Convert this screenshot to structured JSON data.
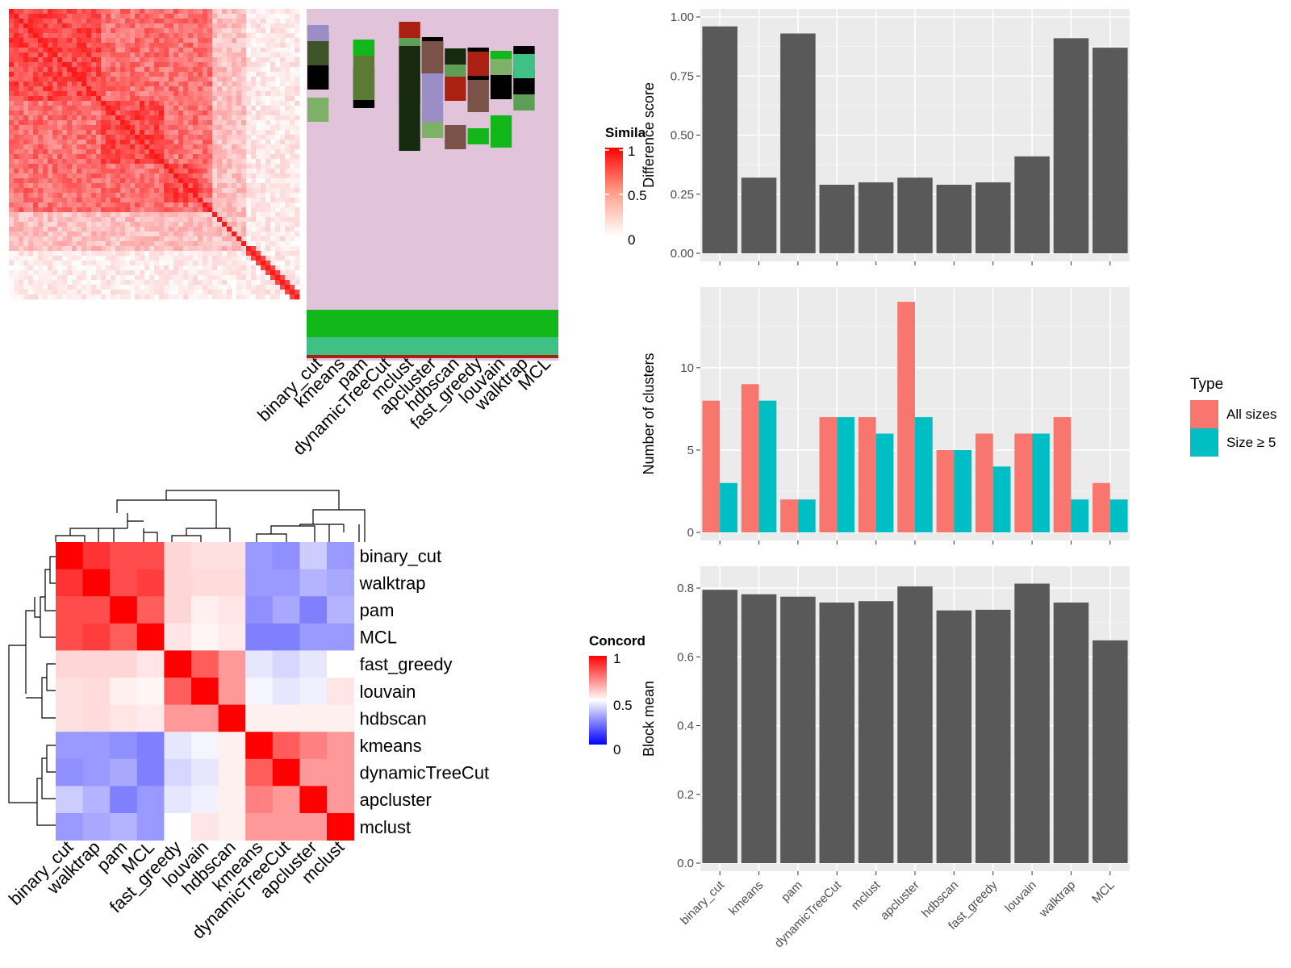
{
  "methods": [
    "binary_cut",
    "kmeans",
    "pam",
    "dynamicTreeCut",
    "mclust",
    "apcluster",
    "hdbscan",
    "fast_greedy",
    "louvain",
    "walktrap",
    "MCL"
  ],
  "similarity_legend": {
    "title": "Simila",
    "ticks": [
      "1",
      "0.5",
      "0"
    ]
  },
  "concordance_legend": {
    "title": "Concord",
    "ticks": [
      "1",
      "0.5",
      "0"
    ]
  },
  "colors": {
    "bar": "#595959",
    "all_sizes": "#F8766D",
    "size5": "#00BFC4",
    "panel_bg": "#EBEBEB",
    "grid": "#FFFFFF",
    "heat_high": "#FF0000",
    "heat_low_blue": "#0000FF",
    "cluster_bg": "#E2C4DA"
  },
  "chart_data": [
    {
      "type": "heatmap",
      "name": "similarity-matrix-with-cluster-assignments",
      "title": "",
      "columns": [
        "binary_cut",
        "kmeans",
        "pam",
        "dynamicTreeCut",
        "mclust",
        "apcluster",
        "hdbscan",
        "fast_greedy",
        "louvain",
        "walktrap",
        "MCL"
      ],
      "legend_title": "Simila",
      "legend_ticks": [
        1,
        0.5,
        0
      ],
      "range": [
        0,
        1
      ]
    },
    {
      "type": "heatmap",
      "name": "concordance-heatmap",
      "title": "",
      "rows": [
        "binary_cut",
        "walktrap",
        "pam",
        "MCL",
        "fast_greedy",
        "louvain",
        "hdbscan",
        "kmeans",
        "dynamicTreeCut",
        "apcluster",
        "mclust"
      ],
      "columns": [
        "binary_cut",
        "walktrap",
        "pam",
        "MCL",
        "fast_greedy",
        "louvain",
        "hdbscan",
        "kmeans",
        "dynamicTreeCut",
        "apcluster",
        "mclust"
      ],
      "values": [
        [
          1.0,
          0.9,
          0.85,
          0.85,
          0.58,
          0.56,
          0.56,
          0.3,
          0.28,
          0.4,
          0.3
        ],
        [
          0.9,
          1.0,
          0.85,
          0.88,
          0.58,
          0.57,
          0.57,
          0.3,
          0.3,
          0.35,
          0.33
        ],
        [
          0.85,
          0.85,
          1.0,
          0.82,
          0.58,
          0.53,
          0.55,
          0.28,
          0.33,
          0.25,
          0.35
        ],
        [
          0.85,
          0.88,
          0.82,
          1.0,
          0.55,
          0.52,
          0.54,
          0.25,
          0.25,
          0.3,
          0.3
        ],
        [
          0.58,
          0.58,
          0.58,
          0.55,
          1.0,
          0.82,
          0.7,
          0.45,
          0.42,
          0.45,
          0.5
        ],
        [
          0.56,
          0.57,
          0.53,
          0.52,
          0.82,
          1.0,
          0.7,
          0.48,
          0.45,
          0.47,
          0.55
        ],
        [
          0.56,
          0.57,
          0.55,
          0.54,
          0.7,
          0.7,
          1.0,
          0.53,
          0.53,
          0.53,
          0.53
        ],
        [
          0.3,
          0.3,
          0.28,
          0.25,
          0.45,
          0.48,
          0.53,
          1.0,
          0.82,
          0.75,
          0.7
        ],
        [
          0.28,
          0.3,
          0.33,
          0.25,
          0.42,
          0.45,
          0.53,
          0.82,
          1.0,
          0.7,
          0.7
        ],
        [
          0.4,
          0.35,
          0.25,
          0.3,
          0.45,
          0.47,
          0.53,
          0.75,
          0.7,
          1.0,
          0.7
        ],
        [
          0.3,
          0.33,
          0.35,
          0.3,
          0.5,
          0.55,
          0.53,
          0.7,
          0.7,
          0.7,
          1.0
        ]
      ],
      "legend_title": "Concord",
      "legend_ticks": [
        1,
        0.5,
        0
      ],
      "range": [
        0,
        1
      ]
    },
    {
      "type": "bar",
      "name": "difference-score",
      "categories": [
        "binary_cut",
        "kmeans",
        "pam",
        "dynamicTreeCut",
        "mclust",
        "apcluster",
        "hdbscan",
        "fast_greedy",
        "louvain",
        "walktrap",
        "MCL"
      ],
      "values": [
        0.96,
        0.32,
        0.93,
        0.29,
        0.3,
        0.32,
        0.29,
        0.3,
        0.41,
        0.91,
        0.87
      ],
      "xlabel": "",
      "ylabel": "Difference score",
      "ylim": [
        0,
        1.0
      ],
      "yticks": [
        "0.00",
        "0.25",
        "0.50",
        "0.75",
        "1.00"
      ]
    },
    {
      "type": "bar",
      "name": "number-of-clusters",
      "categories": [
        "binary_cut",
        "kmeans",
        "pam",
        "dynamicTreeCut",
        "mclust",
        "apcluster",
        "hdbscan",
        "fast_greedy",
        "louvain",
        "walktrap",
        "MCL"
      ],
      "series": [
        {
          "name": "All sizes",
          "values": [
            8,
            9,
            2,
            7,
            7,
            14,
            5,
            6,
            6,
            7,
            3
          ]
        },
        {
          "name": "Size ≥ 5",
          "values": [
            3,
            8,
            2,
            7,
            6,
            7,
            5,
            4,
            6,
            2,
            2
          ]
        }
      ],
      "xlabel": "",
      "ylabel": "Number of clusters",
      "ylim": [
        0,
        14.4
      ],
      "yticks": [
        "0",
        "5",
        "10"
      ],
      "legend_title": "Type",
      "legend_position": "right"
    },
    {
      "type": "bar",
      "name": "block-mean",
      "categories": [
        "binary_cut",
        "kmeans",
        "pam",
        "dynamicTreeCut",
        "mclust",
        "apcluster",
        "hdbscan",
        "fast_greedy",
        "louvain",
        "walktrap",
        "MCL"
      ],
      "values": [
        0.795,
        0.782,
        0.775,
        0.758,
        0.762,
        0.805,
        0.735,
        0.737,
        0.813,
        0.758,
        0.648
      ],
      "xlabel": "",
      "ylabel": "Block mean",
      "ylim": [
        0,
        0.84
      ],
      "yticks": [
        "0.0",
        "0.2",
        "0.4",
        "0.6",
        "0.8"
      ]
    }
  ]
}
